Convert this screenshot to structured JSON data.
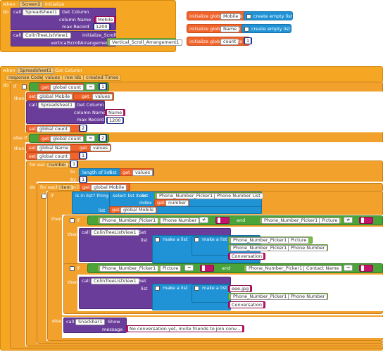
{
  "ev1": {
    "when": "when",
    "comp": "Screen2",
    "event": "Initialize",
    "do": "do"
  },
  "ev1body": {
    "call": "call",
    "sheet": "Spreadsheet1",
    "getcol": "Get Column",
    "colname": "column Name",
    "colval": "Mobile",
    "maxrec": "max Record",
    "maxval": "1200",
    "call2": "call",
    "tree": "ColinTreeListView1",
    "initscroll": "Initialize_Scroll",
    "vsa": "verticalScrollArrangement",
    "vsaval": "Vertical_Scroll_Arrangement1"
  },
  "globals": [
    {
      "init": "initialize global",
      "name": "Mobile",
      "to": "to",
      "val": "create empty list"
    },
    {
      "init": "initialize global",
      "name": "Name",
      "to": "to",
      "val": "create empty list"
    },
    {
      "init": "initialize global",
      "name": "count",
      "to": "to",
      "val": "1"
    }
  ],
  "ev2": {
    "when": "when",
    "comp": "Spreadsheet1",
    "event": "Got Column",
    "params": [
      "response Code",
      "values",
      "row Ids",
      "created Times"
    ],
    "do": "do"
  },
  "if1": {
    "if": "if",
    "get": "get",
    "gcount": "global count",
    "eq": "=",
    "one": "1",
    "then": "then",
    "set": "set",
    "gmobile": "global Mobile",
    "to": "to",
    "values": "values",
    "call": "call",
    "sheet": "Spreadsheet1",
    "getcol": "Get Column",
    "colname": "column Name",
    "name": "Name",
    "maxrec": "max Record",
    "max": "1200",
    "setcount": "global count",
    "two": "2"
  },
  "elseif": {
    "elseif": "else if",
    "gcount": "global count",
    "eq": "=",
    "two": "2",
    "then": "then",
    "gname": "global Name",
    "values": "values",
    "one": "1",
    "foreach": "for each",
    "number": "number",
    "from": "from",
    "to": "to",
    "length": "length of list",
    "list": "list",
    "by": "by",
    "by1": "1",
    "do": "do",
    "item": "item",
    "inlist": "in list",
    "gmobile": "global Mobile"
  },
  "inner": {
    "do": "do",
    "if": "if",
    "isin": "is in list? thing",
    "selitem": "select list item",
    "list": "list",
    "picker": "Phone_Number_Picker1",
    "pnlist": "Phone Number List",
    "index": "index",
    "number": "number",
    "gmobile": "global Mobile",
    "then": "then",
    "phone": "Phone Number",
    "neq": "≠",
    "and": "and",
    "picture": "Picture",
    "call": "call",
    "tree": "ColinTreeListView1",
    "set": "Set",
    "listkw": "list",
    "makelist": "make a list",
    "conv": "Conversation",
    "eq": "=",
    "contact": "Contact Name",
    "eeejpg": "eee.jpg",
    "else": "else",
    "snack": "Snackbar1",
    "show": "Show",
    "message": "message",
    "msg": "No conversation yet, invite friends to join conv..."
  }
}
